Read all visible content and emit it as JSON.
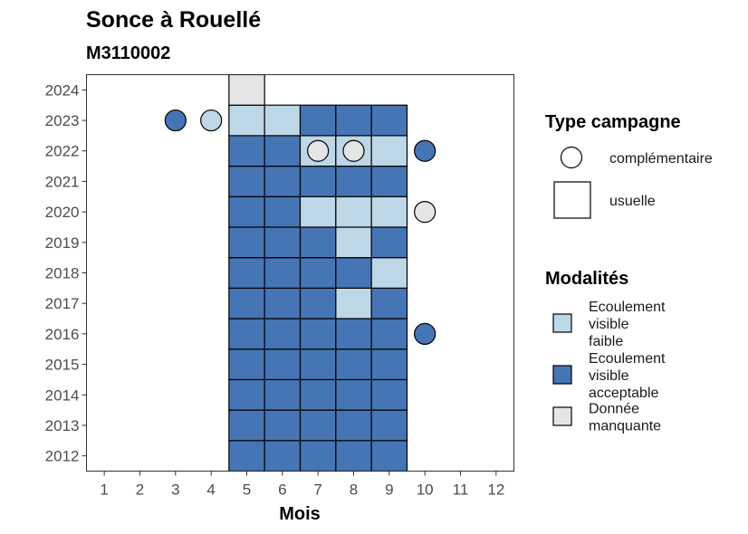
{
  "chart_data": {
    "type": "heatmap",
    "title": "Sonce à Rouellé",
    "subtitle": "M3110002",
    "xlabel": "Mois",
    "ylabel": "",
    "x_ticks": [
      1,
      2,
      3,
      4,
      5,
      6,
      7,
      8,
      9,
      10,
      11,
      12
    ],
    "y_ticks": [
      2012,
      2013,
      2014,
      2015,
      2016,
      2017,
      2018,
      2019,
      2020,
      2021,
      2022,
      2023,
      2024
    ],
    "xlim": [
      0.5,
      12.5
    ],
    "ylim": [
      2011.5,
      2024.5
    ],
    "colors": {
      "Ecoulement visible faible": "#bdd7e7",
      "Ecoulement visible acceptable": "#4575b4",
      "Donnée manquante": "#e5e5e5"
    },
    "usuelle_cells": [
      {
        "year": 2012,
        "month": 5,
        "m": "Ecoulement visible acceptable"
      },
      {
        "year": 2012,
        "month": 6,
        "m": "Ecoulement visible acceptable"
      },
      {
        "year": 2012,
        "month": 7,
        "m": "Ecoulement visible acceptable"
      },
      {
        "year": 2012,
        "month": 8,
        "m": "Ecoulement visible acceptable"
      },
      {
        "year": 2012,
        "month": 9,
        "m": "Ecoulement visible acceptable"
      },
      {
        "year": 2013,
        "month": 5,
        "m": "Ecoulement visible acceptable"
      },
      {
        "year": 2013,
        "month": 6,
        "m": "Ecoulement visible acceptable"
      },
      {
        "year": 2013,
        "month": 7,
        "m": "Ecoulement visible acceptable"
      },
      {
        "year": 2013,
        "month": 8,
        "m": "Ecoulement visible acceptable"
      },
      {
        "year": 2013,
        "month": 9,
        "m": "Ecoulement visible acceptable"
      },
      {
        "year": 2014,
        "month": 5,
        "m": "Ecoulement visible acceptable"
      },
      {
        "year": 2014,
        "month": 6,
        "m": "Ecoulement visible acceptable"
      },
      {
        "year": 2014,
        "month": 7,
        "m": "Ecoulement visible acceptable"
      },
      {
        "year": 2014,
        "month": 8,
        "m": "Ecoulement visible acceptable"
      },
      {
        "year": 2014,
        "month": 9,
        "m": "Ecoulement visible acceptable"
      },
      {
        "year": 2015,
        "month": 5,
        "m": "Ecoulement visible acceptable"
      },
      {
        "year": 2015,
        "month": 6,
        "m": "Ecoulement visible acceptable"
      },
      {
        "year": 2015,
        "month": 7,
        "m": "Ecoulement visible acceptable"
      },
      {
        "year": 2015,
        "month": 8,
        "m": "Ecoulement visible acceptable"
      },
      {
        "year": 2015,
        "month": 9,
        "m": "Ecoulement visible acceptable"
      },
      {
        "year": 2016,
        "month": 5,
        "m": "Ecoulement visible acceptable"
      },
      {
        "year": 2016,
        "month": 6,
        "m": "Ecoulement visible acceptable"
      },
      {
        "year": 2016,
        "month": 7,
        "m": "Ecoulement visible acceptable"
      },
      {
        "year": 2016,
        "month": 8,
        "m": "Ecoulement visible acceptable"
      },
      {
        "year": 2016,
        "month": 9,
        "m": "Ecoulement visible acceptable"
      },
      {
        "year": 2017,
        "month": 5,
        "m": "Ecoulement visible acceptable"
      },
      {
        "year": 2017,
        "month": 6,
        "m": "Ecoulement visible acceptable"
      },
      {
        "year": 2017,
        "month": 7,
        "m": "Ecoulement visible acceptable"
      },
      {
        "year": 2017,
        "month": 8,
        "m": "Ecoulement visible faible"
      },
      {
        "year": 2017,
        "month": 9,
        "m": "Ecoulement visible acceptable"
      },
      {
        "year": 2018,
        "month": 5,
        "m": "Ecoulement visible acceptable"
      },
      {
        "year": 2018,
        "month": 6,
        "m": "Ecoulement visible acceptable"
      },
      {
        "year": 2018,
        "month": 7,
        "m": "Ecoulement visible acceptable"
      },
      {
        "year": 2018,
        "month": 8,
        "m": "Ecoulement visible acceptable"
      },
      {
        "year": 2018,
        "month": 9,
        "m": "Ecoulement visible faible"
      },
      {
        "year": 2019,
        "month": 5,
        "m": "Ecoulement visible acceptable"
      },
      {
        "year": 2019,
        "month": 6,
        "m": "Ecoulement visible acceptable"
      },
      {
        "year": 2019,
        "month": 7,
        "m": "Ecoulement visible acceptable"
      },
      {
        "year": 2019,
        "month": 8,
        "m": "Ecoulement visible faible"
      },
      {
        "year": 2019,
        "month": 9,
        "m": "Ecoulement visible acceptable"
      },
      {
        "year": 2020,
        "month": 5,
        "m": "Ecoulement visible acceptable"
      },
      {
        "year": 2020,
        "month": 6,
        "m": "Ecoulement visible acceptable"
      },
      {
        "year": 2020,
        "month": 7,
        "m": "Ecoulement visible faible"
      },
      {
        "year": 2020,
        "month": 8,
        "m": "Ecoulement visible faible"
      },
      {
        "year": 2020,
        "month": 9,
        "m": "Ecoulement visible faible"
      },
      {
        "year": 2021,
        "month": 5,
        "m": "Ecoulement visible acceptable"
      },
      {
        "year": 2021,
        "month": 6,
        "m": "Ecoulement visible acceptable"
      },
      {
        "year": 2021,
        "month": 7,
        "m": "Ecoulement visible acceptable"
      },
      {
        "year": 2021,
        "month": 8,
        "m": "Ecoulement visible acceptable"
      },
      {
        "year": 2021,
        "month": 9,
        "m": "Ecoulement visible acceptable"
      },
      {
        "year": 2022,
        "month": 5,
        "m": "Ecoulement visible acceptable"
      },
      {
        "year": 2022,
        "month": 6,
        "m": "Ecoulement visible acceptable"
      },
      {
        "year": 2022,
        "month": 7,
        "m": "Ecoulement visible faible"
      },
      {
        "year": 2022,
        "month": 8,
        "m": "Ecoulement visible faible"
      },
      {
        "year": 2022,
        "month": 9,
        "m": "Ecoulement visible faible"
      },
      {
        "year": 2023,
        "month": 5,
        "m": "Ecoulement visible faible"
      },
      {
        "year": 2023,
        "month": 6,
        "m": "Ecoulement visible faible"
      },
      {
        "year": 2023,
        "month": 7,
        "m": "Ecoulement visible acceptable"
      },
      {
        "year": 2023,
        "month": 8,
        "m": "Ecoulement visible acceptable"
      },
      {
        "year": 2023,
        "month": 9,
        "m": "Ecoulement visible acceptable"
      },
      {
        "year": 2024,
        "month": 5,
        "m": "Donnée manquante"
      }
    ],
    "complementaire_points": [
      {
        "year": 2023,
        "month": 3,
        "m": "Ecoulement visible acceptable"
      },
      {
        "year": 2023,
        "month": 4,
        "m": "Ecoulement visible faible"
      },
      {
        "year": 2022,
        "month": 7,
        "m": "Donnée manquante"
      },
      {
        "year": 2022,
        "month": 8,
        "m": "Donnée manquante"
      },
      {
        "year": 2022,
        "month": 10,
        "m": "Ecoulement visible acceptable"
      },
      {
        "year": 2020,
        "month": 10,
        "m": "Donnée manquante"
      },
      {
        "year": 2016,
        "month": 10,
        "m": "Ecoulement visible acceptable"
      }
    ],
    "legend_type": {
      "title": "Type campagne",
      "items": [
        "complémentaire",
        "usuelle"
      ]
    },
    "legend_modalites": {
      "title": "Modalités",
      "items": [
        {
          "label_lines": [
            "Ecoulement",
            "visible",
            "faible"
          ],
          "m": "Ecoulement visible faible"
        },
        {
          "label_lines": [
            "Ecoulement",
            "visible",
            "acceptable"
          ],
          "m": "Ecoulement visible acceptable"
        },
        {
          "label_lines": [
            "Donnée",
            "manquante"
          ],
          "m": "Donnée manquante"
        }
      ]
    }
  }
}
